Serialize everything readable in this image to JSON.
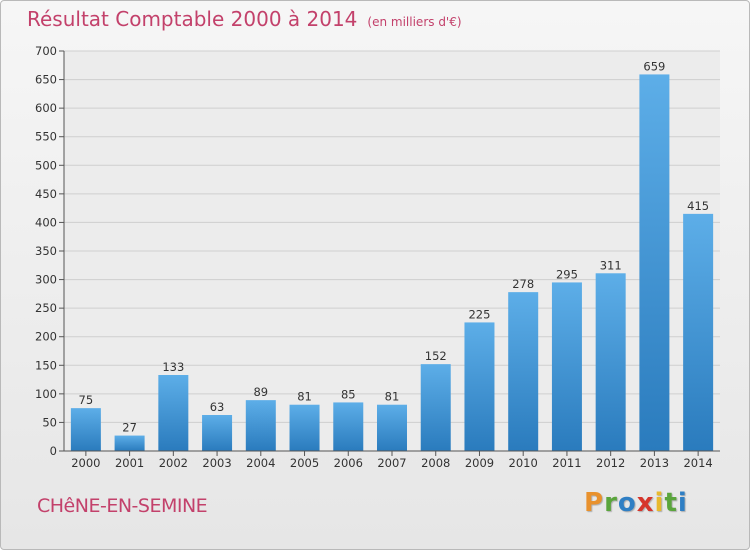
{
  "header": {
    "title": "Résultat Comptable 2000 à 2014",
    "subtitle": "(en milliers d'€)"
  },
  "commune": "CHêNE-EN-SEMINE",
  "logo": {
    "letters": [
      "P",
      "r",
      "o",
      "x",
      "i",
      "t",
      "i"
    ],
    "colors": [
      "#e8912d",
      "#5aa53c",
      "#2f7fc4",
      "#d6352b",
      "#e8b92d",
      "#5aa53c",
      "#2f7fc4"
    ]
  },
  "chart_data": {
    "type": "bar",
    "title": "Résultat Comptable 2000 à 2014",
    "subtitle": "(en milliers d'€)",
    "categories": [
      "2000",
      "2001",
      "2002",
      "2003",
      "2004",
      "2005",
      "2006",
      "2007",
      "2008",
      "2009",
      "2010",
      "2011",
      "2012",
      "2013",
      "2014"
    ],
    "values": [
      75,
      27,
      133,
      63,
      89,
      81,
      85,
      81,
      152,
      225,
      278,
      295,
      311,
      659,
      415
    ],
    "ylim": [
      0,
      700
    ],
    "yticks": [
      0,
      50,
      100,
      150,
      200,
      250,
      300,
      350,
      400,
      450,
      500,
      550,
      600,
      650,
      700
    ],
    "xlabel": "",
    "ylabel": "",
    "grid": true,
    "bar_color_top": "#5daee8",
    "bar_color_bottom": "#2a7bbd"
  }
}
